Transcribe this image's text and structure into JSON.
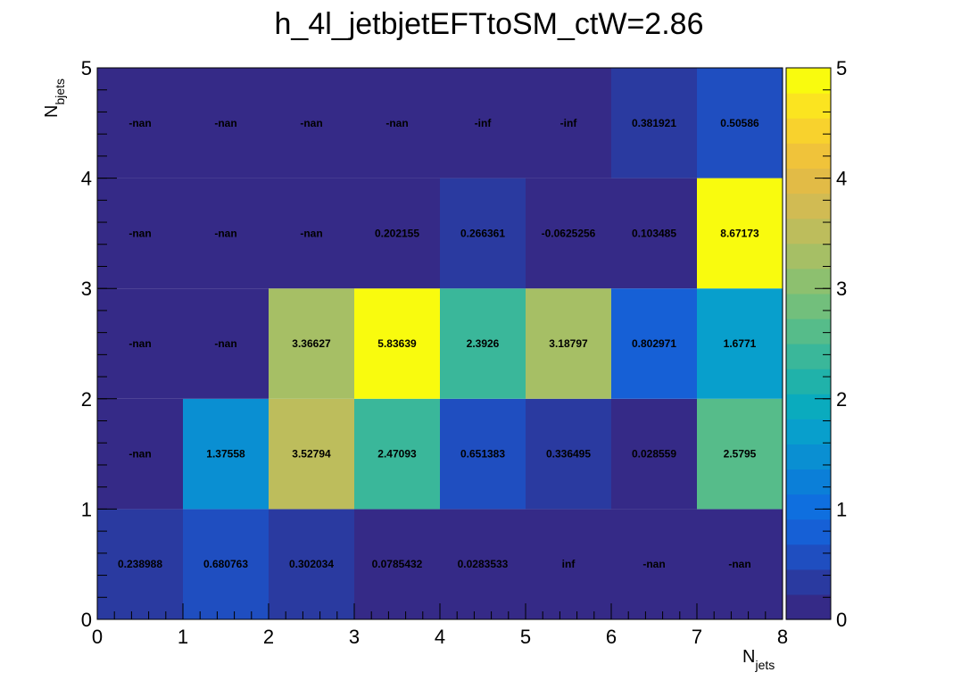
{
  "chart_data": {
    "type": "heatmap",
    "title": "h_4l_jetbjetEFTtoSM_ctW=2.86",
    "xlabel": {
      "main": "N",
      "sub": "jets"
    },
    "ylabel": {
      "main": "N",
      "sub": "bjets"
    },
    "x_range": [
      0,
      8
    ],
    "y_range": [
      0,
      5
    ],
    "x_ticks": [
      "0",
      "1",
      "2",
      "3",
      "4",
      "5",
      "6",
      "7",
      "8"
    ],
    "y_ticks": [
      "0",
      "1",
      "2",
      "3",
      "4",
      "5"
    ],
    "z_range": [
      0,
      5
    ],
    "z_ticks": [
      "0",
      "1",
      "2",
      "3",
      "4",
      "5"
    ],
    "grid": false,
    "palette": [
      "#352a87",
      "#2a3aa0",
      "#1f4ec0",
      "#1660d6",
      "#0f6fdf",
      "#0b7fd8",
      "#0a8fd2",
      "#089fcc",
      "#0aabbe",
      "#20b2aa",
      "#3ab79a",
      "#56bc8a",
      "#72bf7c",
      "#8dc06f",
      "#a6bf65",
      "#bdbd5c",
      "#d1bb53",
      "#e2bb46",
      "#f0c33a",
      "#f8d22d",
      "#fbe420",
      "#f9fb0e"
    ],
    "cells": [
      {
        "x": 0,
        "y": 0,
        "value": 0.238988,
        "label": "0.238988"
      },
      {
        "x": 1,
        "y": 0,
        "value": 0.680763,
        "label": "0.680763"
      },
      {
        "x": 2,
        "y": 0,
        "value": 0.302034,
        "label": "0.302034"
      },
      {
        "x": 3,
        "y": 0,
        "value": 0.0785432,
        "label": "0.0785432"
      },
      {
        "x": 4,
        "y": 0,
        "value": 0.0283533,
        "label": "0.0283533"
      },
      {
        "x": 5,
        "y": 0,
        "value": null,
        "label": "inf"
      },
      {
        "x": 6,
        "y": 0,
        "value": null,
        "label": "-nan"
      },
      {
        "x": 7,
        "y": 0,
        "value": null,
        "label": "-nan"
      },
      {
        "x": 0,
        "y": 1,
        "value": null,
        "label": "-nan"
      },
      {
        "x": 1,
        "y": 1,
        "value": 1.37558,
        "label": "1.37558"
      },
      {
        "x": 2,
        "y": 1,
        "value": 3.52794,
        "label": "3.52794"
      },
      {
        "x": 3,
        "y": 1,
        "value": 2.47093,
        "label": "2.47093"
      },
      {
        "x": 4,
        "y": 1,
        "value": 0.651383,
        "label": "0.651383"
      },
      {
        "x": 5,
        "y": 1,
        "value": 0.336495,
        "label": "0.336495"
      },
      {
        "x": 6,
        "y": 1,
        "value": 0.028559,
        "label": "0.028559"
      },
      {
        "x": 7,
        "y": 1,
        "value": 2.5795,
        "label": "2.5795"
      },
      {
        "x": 0,
        "y": 2,
        "value": null,
        "label": "-nan"
      },
      {
        "x": 1,
        "y": 2,
        "value": null,
        "label": "-nan"
      },
      {
        "x": 2,
        "y": 2,
        "value": 3.36627,
        "label": "3.36627"
      },
      {
        "x": 3,
        "y": 2,
        "value": 5.83639,
        "label": "5.83639"
      },
      {
        "x": 4,
        "y": 2,
        "value": 2.3926,
        "label": "2.3926"
      },
      {
        "x": 5,
        "y": 2,
        "value": 3.18797,
        "label": "3.18797"
      },
      {
        "x": 6,
        "y": 2,
        "value": 0.802971,
        "label": "0.802971"
      },
      {
        "x": 7,
        "y": 2,
        "value": 1.6771,
        "label": "1.6771"
      },
      {
        "x": 0,
        "y": 3,
        "value": null,
        "label": "-nan"
      },
      {
        "x": 1,
        "y": 3,
        "value": null,
        "label": "-nan"
      },
      {
        "x": 2,
        "y": 3,
        "value": null,
        "label": "-nan"
      },
      {
        "x": 3,
        "y": 3,
        "value": 0.202155,
        "label": "0.202155"
      },
      {
        "x": 4,
        "y": 3,
        "value": 0.266361,
        "label": "0.266361"
      },
      {
        "x": 5,
        "y": 3,
        "value": -0.0625256,
        "label": "-0.0625256"
      },
      {
        "x": 6,
        "y": 3,
        "value": 0.103485,
        "label": "0.103485"
      },
      {
        "x": 7,
        "y": 3,
        "value": 8.67173,
        "label": "8.67173"
      },
      {
        "x": 0,
        "y": 4,
        "value": null,
        "label": "-nan"
      },
      {
        "x": 1,
        "y": 4,
        "value": null,
        "label": "-nan"
      },
      {
        "x": 2,
        "y": 4,
        "value": null,
        "label": "-nan"
      },
      {
        "x": 3,
        "y": 4,
        "value": null,
        "label": "-nan"
      },
      {
        "x": 4,
        "y": 4,
        "value": null,
        "label": "-inf"
      },
      {
        "x": 5,
        "y": 4,
        "value": null,
        "label": "-inf"
      },
      {
        "x": 6,
        "y": 4,
        "value": 0.381921,
        "label": "0.381921"
      },
      {
        "x": 7,
        "y": 4,
        "value": 0.50586,
        "label": "0.50586"
      }
    ]
  }
}
